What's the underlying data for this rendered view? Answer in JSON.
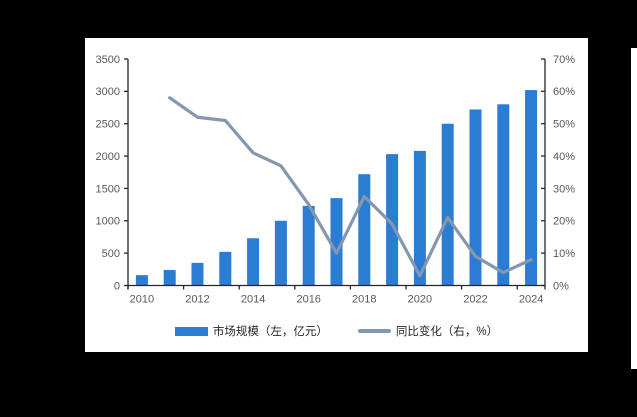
{
  "page": {
    "background": "#000000"
  },
  "panel": {
    "background": "#ffffff"
  },
  "chart_data": {
    "type": "bar+line",
    "categories": [
      "2010",
      "2011",
      "2012",
      "2013",
      "2014",
      "2015",
      "2016",
      "2017",
      "2018",
      "2019",
      "2020",
      "2021",
      "2022",
      "2023",
      "2024"
    ],
    "series": [
      {
        "name": "市场规模（左，亿元）",
        "type": "bar",
        "axis": "left",
        "color": "#2B7CD3",
        "values": [
          160,
          240,
          350,
          520,
          730,
          1000,
          1230,
          1350,
          1720,
          2030,
          2080,
          2500,
          2720,
          2800,
          3020
        ]
      },
      {
        "name": "同比变化（右，%）",
        "type": "line",
        "axis": "right",
        "color": "#8497B0",
        "values": [
          null,
          58,
          52,
          51,
          41,
          37,
          25,
          10,
          27.5,
          19,
          3,
          21,
          9,
          4,
          8
        ]
      }
    ],
    "left_axis": {
      "min": 0,
      "max": 3500,
      "step": 500,
      "tick_labels": [
        "0",
        "500",
        "1000",
        "1500",
        "2000",
        "2500",
        "3000",
        "3500"
      ]
    },
    "right_axis": {
      "min": 0,
      "max": 70,
      "step": 10,
      "tick_labels": [
        "0%",
        "10%",
        "20%",
        "30%",
        "40%",
        "50%",
        "60%",
        "70%"
      ]
    },
    "x_axis": {
      "tick_labels": [
        "2010",
        "2012",
        "2014",
        "2016",
        "2018",
        "2020",
        "2022",
        "2024"
      ],
      "label_every": 2
    },
    "legend_position": "bottom",
    "grid": "off",
    "axis_label_color": "#595959",
    "axis_line_color": "#262626"
  }
}
